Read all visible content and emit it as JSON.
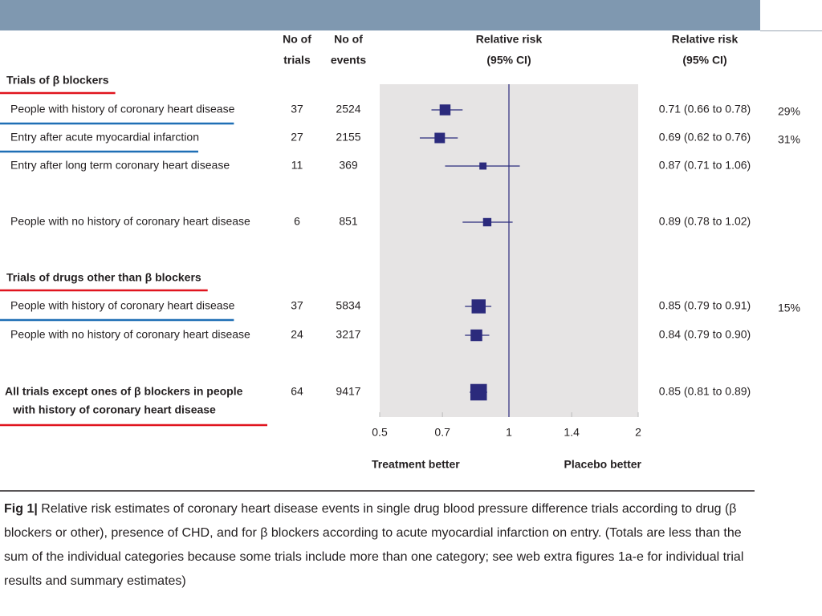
{
  "chart_data": {
    "type": "forest",
    "log": true,
    "xlim": [
      0.5,
      2
    ],
    "xticks": [
      0.5,
      0.7,
      1,
      1.4,
      2
    ],
    "reference": 1,
    "xlabel_left": "Treatment better",
    "xlabel_right": "Placebo better",
    "column_headers": [
      [
        "No of",
        "trials"
      ],
      [
        "No of",
        "events"
      ],
      [
        "Relative risk",
        "(95% CI)"
      ],
      [
        "Relative risk",
        "(95% CI)"
      ]
    ],
    "colors": {
      "marker": "#2b2a7c",
      "section_underline": "#e0141e",
      "row_underline": "#1f6fb5",
      "plot_background": "#e6e4e4",
      "header_bar": "#7f98b0"
    },
    "sections": [
      {
        "title": "Trials of β blockers",
        "rows": [
          {
            "label": [
              "People with history of coronary heart disease"
            ],
            "trials": 37,
            "events": 2524,
            "estimate": 0.71,
            "low": 0.66,
            "high": 0.78,
            "ci_label": "0.71 (0.66 to 0.78)",
            "annotation": "29%",
            "underline": true
          },
          {
            "label": [
              "Entry after acute myocardial infarction"
            ],
            "trials": 27,
            "events": 2155,
            "estimate": 0.69,
            "low": 0.62,
            "high": 0.76,
            "ci_label": "0.69 (0.62 to 0.76)",
            "annotation": "31%",
            "underline": true
          },
          {
            "label": [
              "Entry after long term coronary heart disease"
            ],
            "trials": 11,
            "events": 369,
            "estimate": 0.87,
            "low": 0.71,
            "high": 1.06,
            "ci_label": "0.87 (0.71 to 1.06)"
          },
          {
            "label": [
              "People with no history of coronary heart disease"
            ],
            "trials": 6,
            "events": 851,
            "estimate": 0.89,
            "low": 0.78,
            "high": 1.02,
            "ci_label": "0.89 (0.78 to 1.02)"
          }
        ]
      },
      {
        "title": "Trials of drugs other than β blockers",
        "rows": [
          {
            "label": [
              "People with history of coronary heart disease"
            ],
            "trials": 37,
            "events": 5834,
            "estimate": 0.85,
            "low": 0.79,
            "high": 0.91,
            "ci_label": "0.85 (0.79 to 0.91)",
            "annotation": "15%",
            "underline": true
          },
          {
            "label": [
              "People with no history of coronary heart disease"
            ],
            "trials": 24,
            "events": 3217,
            "estimate": 0.84,
            "low": 0.79,
            "high": 0.9,
            "ci_label": "0.84 (0.79 to 0.90)"
          }
        ]
      },
      {
        "rows": [
          {
            "label": [
              "All trials except ones of β blockers in people",
              "with history of coronary heart disease"
            ],
            "bold": true,
            "trials": 64,
            "events": 9417,
            "estimate": 0.85,
            "low": 0.81,
            "high": 0.89,
            "ci_label": "0.85 (0.81 to 0.89)",
            "section_underline": true
          }
        ]
      }
    ],
    "caption_label": "Fig 1|",
    "caption": "Relative risk estimates of coronary heart disease events in single drug blood pressure difference trials according to drug (β blockers or other), presence of CHD, and for β blockers according to acute myocardial infarction on entry. (Totals are less than the sum of the individual categories because some trials include more than one category; see web extra figures 1a-e for individual trial results and summary estimates)"
  }
}
